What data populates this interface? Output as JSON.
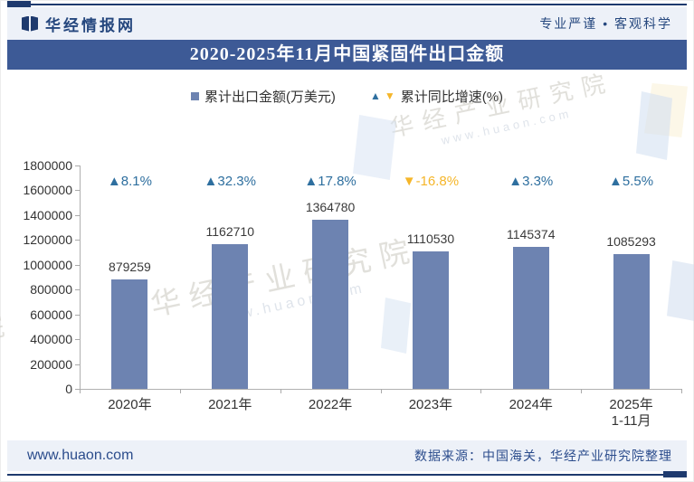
{
  "header": {
    "logo": "华经情报网",
    "tagline": "专业严谨 • 客观科学",
    "title": "2020-2025年11月中国紧固件出口金额"
  },
  "legend": {
    "bar_label": "累计出口金额(万美元)",
    "growth_label": "累计同比增速(%)"
  },
  "chart_data": {
    "type": "bar",
    "title": "2020-2025年11月中国紧固件出口金额",
    "categories": [
      "2020年",
      "2021年",
      "2022年",
      "2023年",
      "2024年",
      "2025年\n1-11月"
    ],
    "series": [
      {
        "name": "累计出口金额(万美元)",
        "values": [
          879259,
          1162710,
          1364780,
          1110530,
          1145374,
          1085293
        ]
      },
      {
        "name": "累计同比增速(%)",
        "values": [
          8.1,
          32.3,
          17.8,
          -16.8,
          3.3,
          5.5
        ]
      }
    ],
    "growth_display": [
      "▲8.1%",
      "▲32.3%",
      "▲17.8%",
      "▼-16.8%",
      "▲3.3%",
      "▲5.5%"
    ],
    "ylim": [
      0,
      1800000
    ],
    "ytick_step": 200000,
    "grid": false,
    "legend_position": "top"
  },
  "watermark": {
    "line1": "华经产业研究院",
    "line2": "www.huaon.com"
  },
  "footer": {
    "site": "www.huaon.com",
    "source": "数据来源：中国海关，华经产业研究院整理"
  },
  "colors": {
    "bar": "#6d83b1",
    "up": "#2e6f9f",
    "down": "#f5b62a",
    "navy": "#1e3a6e",
    "navy_text": "#25477e",
    "title_bg": "#3d5a96",
    "strip_bg": "#edf1f8",
    "axis": "#b0b0b0",
    "label": "#333333"
  }
}
